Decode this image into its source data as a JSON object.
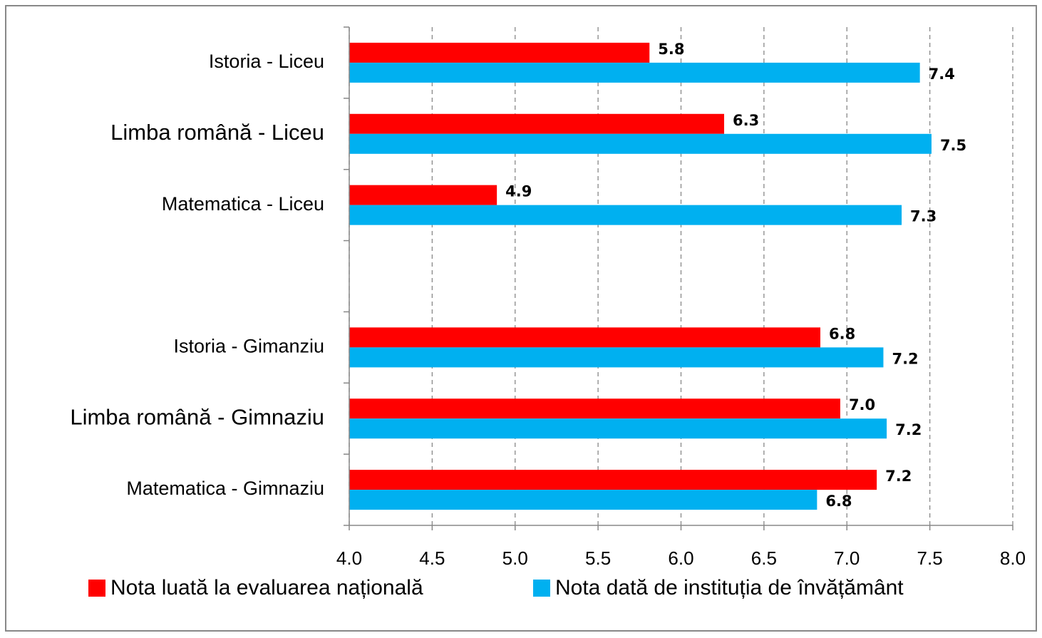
{
  "chart_data": {
    "type": "bar",
    "orientation": "horizontal",
    "categories": [
      "Istoria - Liceu",
      "Limba română - Liceu",
      "Matematica - Liceu",
      null,
      "Istoria - Gimanziu",
      "Limba română - Gimnaziu",
      "Matematica - Gimnaziu"
    ],
    "series": [
      {
        "name": "Nota luată la evaluarea națională",
        "color": "#ff0000",
        "values": [
          5.81,
          6.26,
          4.89,
          null,
          6.84,
          6.96,
          7.18
        ],
        "value_labels": [
          "5.8",
          "6.3",
          "4.9",
          null,
          "6.8",
          "7.0",
          "7.2"
        ]
      },
      {
        "name": "Nota dată de instituția de învățământ",
        "color": "#00b0f0",
        "values": [
          7.44,
          7.51,
          7.33,
          null,
          7.22,
          7.24,
          6.82
        ],
        "value_labels": [
          "7.4",
          "7.5",
          "7.3",
          null,
          "7.2",
          "7.2",
          "6.8"
        ]
      }
    ],
    "xlim": [
      4,
      8
    ],
    "xticks": [
      {
        "value": 4,
        "label": "4.0"
      },
      {
        "value": 4.5,
        "label": "4.5"
      },
      {
        "value": 5,
        "label": "5.0"
      },
      {
        "value": 5.5,
        "label": "5.5"
      },
      {
        "value": 6,
        "label": "6.0"
      },
      {
        "value": 6.5,
        "label": "6.5"
      },
      {
        "value": 7,
        "label": "7.0"
      },
      {
        "value": 7.5,
        "label": "7.5"
      },
      {
        "value": 8,
        "label": "8.0"
      }
    ],
    "grid": true,
    "legend": "bottom"
  }
}
